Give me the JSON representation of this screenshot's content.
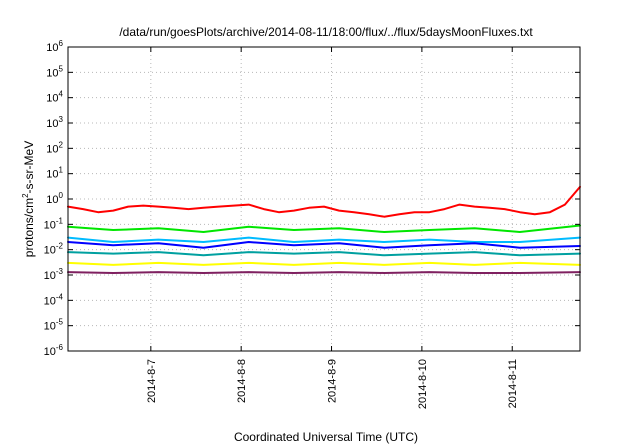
{
  "chart_data": {
    "type": "line",
    "title": "/data/run/goesPlots/archive/2014-08-11/18:00/flux/../flux/5daysMoonFluxes.txt",
    "xlabel": "Coordinated Universal Time (UTC)",
    "ylabel_prefix": "protons/cm",
    "ylabel_sup": "2",
    "ylabel_suffix": "-s-sr-MeV",
    "y_scale": "log",
    "ylim": [
      1e-06,
      1000000.0
    ],
    "xlim": [
      "2014-08-06T02:00",
      "2014-08-11T18:00"
    ],
    "grid": true,
    "legend": "none",
    "x_ticks": [
      {
        "x": "2014-08-07T00:00",
        "label": "2014-8-7"
      },
      {
        "x": "2014-08-08T00:00",
        "label": "2014-8-8"
      },
      {
        "x": "2014-08-09T00:00",
        "label": "2014-8-9"
      },
      {
        "x": "2014-08-10T00:00",
        "label": "2014-8-10"
      },
      {
        "x": "2014-08-11T00:00",
        "label": "2014-8-11"
      }
    ],
    "y_ticks": [
      {
        "y": 1e-06,
        "base": "10",
        "exp": "-6"
      },
      {
        "y": 1e-05,
        "base": "10",
        "exp": "-5"
      },
      {
        "y": 0.0001,
        "base": "10",
        "exp": "-4"
      },
      {
        "y": 0.001,
        "base": "10",
        "exp": "-3"
      },
      {
        "y": 0.01,
        "base": "10",
        "exp": "-2"
      },
      {
        "y": 0.1,
        "base": "10",
        "exp": "-1"
      },
      {
        "y": 1.0,
        "base": "10",
        "exp": "0"
      },
      {
        "y": 10.0,
        "base": "10",
        "exp": "1"
      },
      {
        "y": 100.0,
        "base": "10",
        "exp": "2"
      },
      {
        "y": 1000.0,
        "base": "10",
        "exp": "3"
      },
      {
        "y": 10000.0,
        "base": "10",
        "exp": "4"
      },
      {
        "y": 100000.0,
        "base": "10",
        "exp": "5"
      },
      {
        "y": 1000000.0,
        "base": "10",
        "exp": "6"
      }
    ],
    "series": [
      {
        "color": "#ff0000",
        "x": [
          "2014-08-06T02:00",
          "2014-08-06T06:00",
          "2014-08-06T10:00",
          "2014-08-06T14:00",
          "2014-08-06T18:00",
          "2014-08-06T22:00",
          "2014-08-07T02:00",
          "2014-08-07T06:00",
          "2014-08-07T10:00",
          "2014-08-07T14:00",
          "2014-08-07T18:00",
          "2014-08-07T22:00",
          "2014-08-08T02:00",
          "2014-08-08T06:00",
          "2014-08-08T10:00",
          "2014-08-08T14:00",
          "2014-08-08T18:00",
          "2014-08-08T22:00",
          "2014-08-09T02:00",
          "2014-08-09T06:00",
          "2014-08-09T10:00",
          "2014-08-09T14:00",
          "2014-08-09T18:00",
          "2014-08-09T22:00",
          "2014-08-10T02:00",
          "2014-08-10T06:00",
          "2014-08-10T10:00",
          "2014-08-10T14:00",
          "2014-08-10T18:00",
          "2014-08-10T22:00",
          "2014-08-11T02:00",
          "2014-08-11T06:00",
          "2014-08-11T10:00",
          "2014-08-11T14:00",
          "2014-08-11T18:00"
        ],
        "values": [
          0.5,
          0.4,
          0.3,
          0.35,
          0.5,
          0.55,
          0.5,
          0.45,
          0.4,
          0.45,
          0.5,
          0.55,
          0.6,
          0.4,
          0.3,
          0.35,
          0.45,
          0.5,
          0.35,
          0.3,
          0.25,
          0.2,
          0.25,
          0.3,
          0.3,
          0.4,
          0.6,
          0.5,
          0.45,
          0.4,
          0.3,
          0.25,
          0.3,
          0.6,
          3.0
        ]
      },
      {
        "color": "#00e600",
        "x": [
          "2014-08-06T02:00",
          "2014-08-06T14:00",
          "2014-08-07T02:00",
          "2014-08-07T14:00",
          "2014-08-08T02:00",
          "2014-08-08T14:00",
          "2014-08-09T02:00",
          "2014-08-09T14:00",
          "2014-08-10T02:00",
          "2014-08-10T14:00",
          "2014-08-11T02:00",
          "2014-08-11T18:00"
        ],
        "values": [
          0.08,
          0.06,
          0.07,
          0.05,
          0.08,
          0.06,
          0.07,
          0.05,
          0.06,
          0.07,
          0.05,
          0.09
        ]
      },
      {
        "color": "#00bbff",
        "x": [
          "2014-08-06T02:00",
          "2014-08-06T14:00",
          "2014-08-07T02:00",
          "2014-08-07T14:00",
          "2014-08-08T02:00",
          "2014-08-08T14:00",
          "2014-08-09T02:00",
          "2014-08-09T14:00",
          "2014-08-10T02:00",
          "2014-08-10T14:00",
          "2014-08-11T02:00",
          "2014-08-11T18:00"
        ],
        "values": [
          0.03,
          0.02,
          0.025,
          0.02,
          0.03,
          0.02,
          0.025,
          0.02,
          0.025,
          0.02,
          0.02,
          0.03
        ]
      },
      {
        "color": "#0000ff",
        "x": [
          "2014-08-06T02:00",
          "2014-08-06T14:00",
          "2014-08-07T02:00",
          "2014-08-07T14:00",
          "2014-08-08T02:00",
          "2014-08-08T14:00",
          "2014-08-09T02:00",
          "2014-08-09T14:00",
          "2014-08-10T02:00",
          "2014-08-10T14:00",
          "2014-08-11T02:00",
          "2014-08-11T18:00"
        ],
        "values": [
          0.02,
          0.015,
          0.018,
          0.012,
          0.02,
          0.015,
          0.018,
          0.012,
          0.015,
          0.018,
          0.012,
          0.014
        ]
      },
      {
        "color": "#00a0a0",
        "x": [
          "2014-08-06T02:00",
          "2014-08-06T14:00",
          "2014-08-07T02:00",
          "2014-08-07T14:00",
          "2014-08-08T02:00",
          "2014-08-08T14:00",
          "2014-08-09T02:00",
          "2014-08-09T14:00",
          "2014-08-10T02:00",
          "2014-08-10T14:00",
          "2014-08-11T02:00",
          "2014-08-11T18:00"
        ],
        "values": [
          0.008,
          0.007,
          0.008,
          0.006,
          0.008,
          0.007,
          0.008,
          0.006,
          0.007,
          0.008,
          0.006,
          0.007
        ]
      },
      {
        "color": "#ffff00",
        "x": [
          "2014-08-06T02:00",
          "2014-08-06T14:00",
          "2014-08-07T02:00",
          "2014-08-07T14:00",
          "2014-08-08T02:00",
          "2014-08-08T14:00",
          "2014-08-09T02:00",
          "2014-08-09T14:00",
          "2014-08-10T02:00",
          "2014-08-10T14:00",
          "2014-08-11T02:00",
          "2014-08-11T18:00"
        ],
        "values": [
          0.003,
          0.0025,
          0.003,
          0.0025,
          0.003,
          0.0025,
          0.003,
          0.0025,
          0.003,
          0.0025,
          0.003,
          0.0025
        ]
      },
      {
        "color": "#7f2060",
        "x": [
          "2014-08-06T02:00",
          "2014-08-06T14:00",
          "2014-08-07T02:00",
          "2014-08-07T14:00",
          "2014-08-08T02:00",
          "2014-08-08T14:00",
          "2014-08-09T02:00",
          "2014-08-09T14:00",
          "2014-08-10T02:00",
          "2014-08-10T14:00",
          "2014-08-11T02:00",
          "2014-08-11T18:00"
        ],
        "values": [
          0.0013,
          0.0012,
          0.0013,
          0.0012,
          0.0013,
          0.0012,
          0.0013,
          0.0012,
          0.0013,
          0.0012,
          0.0012,
          0.0013
        ]
      }
    ]
  }
}
